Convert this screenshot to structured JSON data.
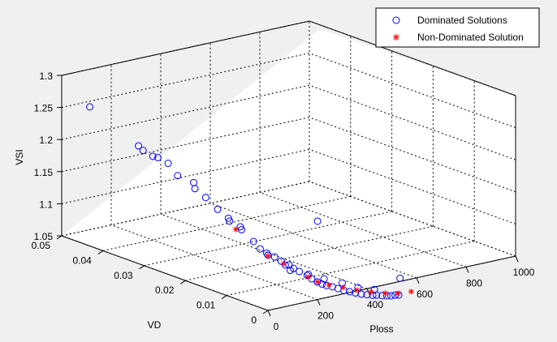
{
  "chart_data": {
    "type": "scatter",
    "title": "",
    "xlabel": "Ploss",
    "ylabel": "VD",
    "zlabel": "VSI",
    "xlim": [
      0,
      1000
    ],
    "ylim": [
      0,
      0.05
    ],
    "zlim": [
      1.05,
      1.3
    ],
    "x_ticks": [
      "0",
      "200",
      "400",
      "600",
      "800",
      "1000"
    ],
    "y_ticks": [
      "0",
      "0.01",
      "0.02",
      "0.03",
      "0.04",
      "0.05"
    ],
    "z_ticks": [
      "1.05",
      "1.1",
      "1.15",
      "1.2",
      "1.25",
      "1.3"
    ],
    "grid": true,
    "legend_position": "top-right",
    "series": [
      {
        "name": "Dominated Solutions",
        "marker": "circle",
        "color": "#0000ff",
        "points": [
          [
            30,
            0.045,
            1.26
          ],
          [
            60,
            0.035,
            1.22
          ],
          [
            62,
            0.034,
            1.215
          ],
          [
            68,
            0.032,
            1.21
          ],
          [
            72,
            0.031,
            1.21
          ],
          [
            80,
            0.029,
            1.205
          ],
          [
            85,
            0.027,
            1.19
          ],
          [
            100,
            0.024,
            1.185
          ],
          [
            105,
            0.024,
            1.175
          ],
          [
            115,
            0.022,
            1.165
          ],
          [
            130,
            0.02,
            1.15
          ],
          [
            140,
            0.018,
            1.14
          ],
          [
            145,
            0.018,
            1.135
          ],
          [
            155,
            0.016,
            1.13
          ],
          [
            160,
            0.016,
            1.125
          ],
          [
            175,
            0.014,
            1.11
          ],
          [
            185,
            0.013,
            1.1
          ],
          [
            195,
            0.012,
            1.095
          ],
          [
            210,
            0.011,
            1.09
          ],
          [
            220,
            0.01,
            1.085
          ],
          [
            235,
            0.009,
            1.08
          ],
          [
            245,
            0.0085,
            1.075
          ],
          [
            260,
            0.008,
            1.07
          ],
          [
            275,
            0.007,
            1.065
          ],
          [
            285,
            0.0065,
            1.06
          ],
          [
            300,
            0.006,
            1.055
          ],
          [
            310,
            0.0055,
            1.052
          ],
          [
            320,
            0.005,
            1.05
          ],
          [
            335,
            0.0045,
            1.048
          ],
          [
            350,
            0.004,
            1.045
          ],
          [
            365,
            0.0035,
            1.042
          ],
          [
            380,
            0.003,
            1.04
          ],
          [
            395,
            0.0025,
            1.038
          ],
          [
            410,
            0.002,
            1.036
          ],
          [
            425,
            0.0015,
            1.035
          ],
          [
            440,
            0.001,
            1.034
          ],
          [
            455,
            0.001,
            1.033
          ],
          [
            470,
            0.0005,
            1.032
          ],
          [
            485,
            0.0003,
            1.031
          ],
          [
            500,
            0.0002,
            1.03
          ],
          [
            515,
            0.0001,
            1.03
          ],
          [
            530,
            0.0001,
            1.029
          ],
          [
            290,
            0.012,
            1.06
          ],
          [
            330,
            0.01,
            1.055
          ],
          [
            360,
            0.008,
            1.05
          ],
          [
            400,
            0.006,
            1.045
          ],
          [
            430,
            0.004,
            1.04
          ],
          [
            480,
            0.003,
            1.035
          ],
          [
            600,
            0.004,
            1.04
          ],
          [
            700,
            0.03,
            1.06
          ],
          [
            250,
            0.015,
            1.08
          ],
          [
            270,
            0.012,
            1.07
          ]
        ]
      },
      {
        "name": "Non-Dominated Solution",
        "marker": "star",
        "color": "#ff0000",
        "points": [
          [
            170,
            0.018,
            1.12
          ],
          [
            200,
            0.012,
            1.09
          ],
          [
            230,
            0.01,
            1.08
          ],
          [
            280,
            0.007,
            1.062
          ],
          [
            300,
            0.006,
            1.055
          ],
          [
            330,
            0.005,
            1.05
          ],
          [
            370,
            0.004,
            1.045
          ],
          [
            410,
            0.003,
            1.04
          ],
          [
            450,
            0.002,
            1.036
          ],
          [
            490,
            0.001,
            1.033
          ],
          [
            530,
            0.0003,
            1.031
          ],
          [
            580,
            0.0001,
            1.03
          ]
        ]
      }
    ]
  }
}
